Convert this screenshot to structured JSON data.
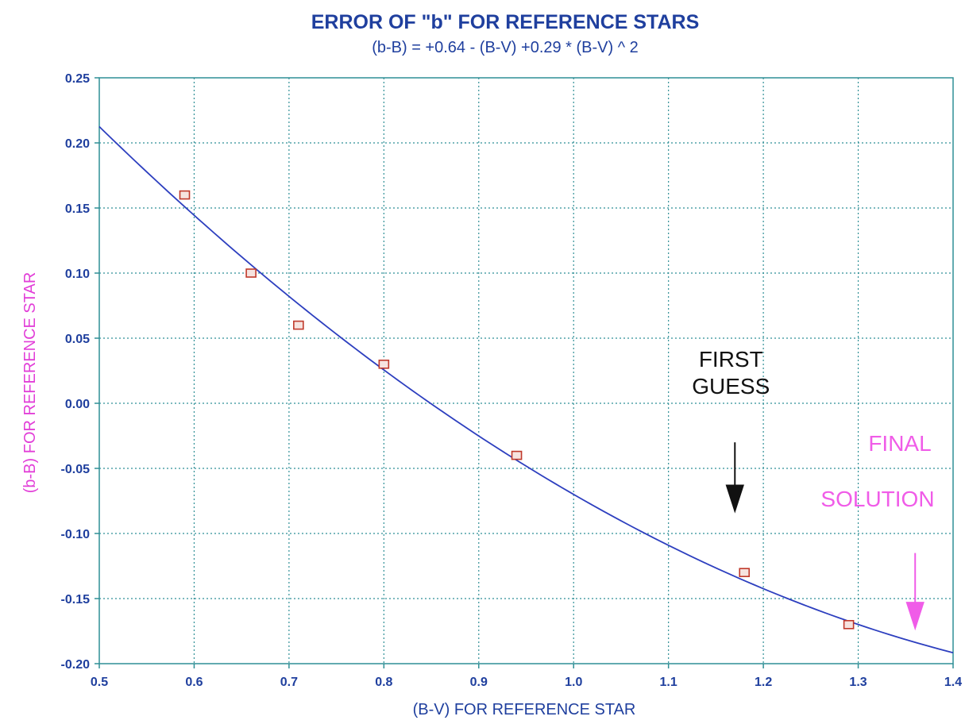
{
  "colors": {
    "axis": "#2f8f96",
    "grid": "#2f8f96",
    "curve": "#2d3fbf",
    "points": "#c0392b",
    "text": "#1f3f9e",
    "ylabel": "#e23fd8",
    "first_guess": "#111111",
    "final_solution": "#f05ce8"
  },
  "chart_data": {
    "type": "scatter",
    "title": "ERROR OF \"b\" FOR REFERENCE STARS",
    "subtitle": "(b-B) = +0.64 - (B-V) +0.29 * (B-V) ^ 2",
    "xlabel": "(B-V) FOR REFERENCE STAR",
    "ylabel": "(b-B) FOR REFERENCE STAR",
    "xlim": [
      0.5,
      1.4
    ],
    "ylim": [
      -0.2,
      0.25
    ],
    "grid": true,
    "x_ticks": [
      "0.5",
      "0.6",
      "0.7",
      "0.8",
      "0.9",
      "1.0",
      "1.1",
      "1.2",
      "1.3",
      "1.4"
    ],
    "y_ticks": [
      "0.25",
      "0.20",
      "0.15",
      "0.10",
      "0.05",
      "0.00",
      "-0.05",
      "-0.10",
      "-0.15",
      "-0.20"
    ],
    "series": [
      {
        "kind": "points",
        "x": [
          0.59,
          0.66,
          0.71,
          0.8,
          0.94,
          1.18,
          1.29
        ],
        "y": [
          0.16,
          0.1,
          0.06,
          0.03,
          -0.04,
          -0.13,
          -0.17
        ]
      },
      {
        "kind": "fit-curve",
        "coefficients": [
          0.64,
          -1.0,
          0.29
        ],
        "x_range": [
          0.5,
          1.4
        ]
      }
    ],
    "annotations": [
      {
        "lines": [
          "FIRST",
          "GUESS"
        ],
        "arrow_x": 1.17,
        "arrow_y_from": -0.03,
        "arrow_y_to": -0.075,
        "color_key": "first_guess"
      },
      {
        "lines": [
          "FINAL",
          "SOLUTION"
        ],
        "arrow_x": 1.36,
        "arrow_y_from": -0.115,
        "arrow_y_to": -0.165,
        "color_key": "final_solution"
      }
    ]
  }
}
